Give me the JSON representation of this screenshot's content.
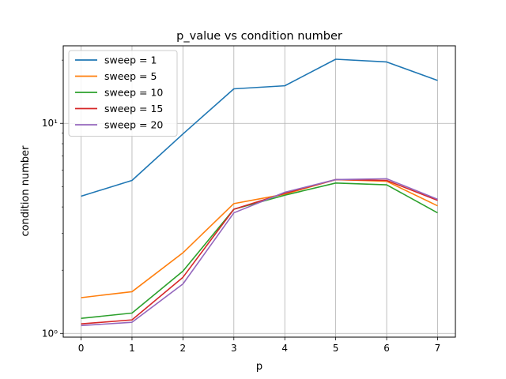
{
  "chart_data": {
    "type": "line",
    "title": "p_value vs condition number",
    "xlabel": "p",
    "ylabel": "condition number",
    "yscale": "log",
    "xlim": [
      -0.35,
      7.35
    ],
    "ylim": [
      0.96,
      23.4
    ],
    "grid": true,
    "legend_position": "top-left",
    "x": [
      0,
      1,
      2,
      3,
      4,
      5,
      6,
      7
    ],
    "x_tick_labels": [
      "0",
      "1",
      "2",
      "3",
      "4",
      "5",
      "6",
      "7"
    ],
    "y_ticks": [
      1,
      10
    ],
    "y_tick_labels": [
      "10⁰",
      "10¹"
    ],
    "series": [
      {
        "name": "sweep = 1",
        "color": "#1f77b4",
        "values": [
          4.5,
          5.35,
          8.9,
          14.6,
          15.1,
          20.2,
          19.6,
          16.0
        ]
      },
      {
        "name": "sweep = 5",
        "color": "#ff7f0e",
        "values": [
          1.48,
          1.58,
          2.42,
          4.15,
          4.6,
          5.4,
          5.3,
          4.05
        ]
      },
      {
        "name": "sweep = 10",
        "color": "#2ca02c",
        "values": [
          1.18,
          1.25,
          1.98,
          3.9,
          4.55,
          5.2,
          5.1,
          3.75
        ]
      },
      {
        "name": "sweep = 15",
        "color": "#d62728",
        "values": [
          1.11,
          1.16,
          1.85,
          3.9,
          4.65,
          5.4,
          5.35,
          4.3
        ]
      },
      {
        "name": "sweep = 20",
        "color": "#9467bd",
        "values": [
          1.09,
          1.13,
          1.72,
          3.75,
          4.7,
          5.4,
          5.45,
          4.35
        ]
      }
    ]
  }
}
